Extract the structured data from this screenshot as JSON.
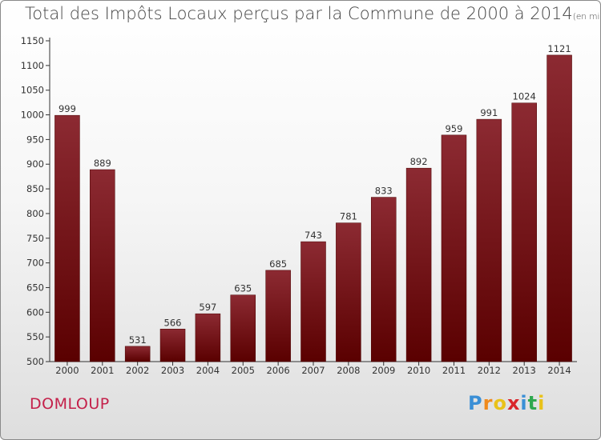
{
  "header": {
    "title": "Total des Impôts Locaux perçus par la Commune de 2000 à 2014",
    "unit": "(en milliers d'€)"
  },
  "footer": {
    "commune": "DOMLOUP",
    "logo_letters": [
      "P",
      "r",
      "o",
      "x",
      "i",
      "t",
      "i"
    ],
    "logo_colors": [
      "#3a8fd6",
      "#f08a1c",
      "#e9c21a",
      "#d9262b",
      "#3a8fd6",
      "#2fa84f",
      "#e9c21a"
    ]
  },
  "colors": {
    "bar_top": "#8c2a32",
    "bar_bottom": "#5a0000",
    "commune": "#c4204a"
  },
  "chart_data": {
    "type": "bar",
    "title": "Total des Impôts Locaux perçus par la Commune de 2000 à 2014",
    "xlabel": "",
    "ylabel": "",
    "categories": [
      "2000",
      "2001",
      "2002",
      "2003",
      "2004",
      "2005",
      "2006",
      "2007",
      "2008",
      "2009",
      "2010",
      "2011",
      "2012",
      "2013",
      "2014"
    ],
    "values": [
      999,
      889,
      531,
      566,
      597,
      635,
      685,
      743,
      781,
      833,
      892,
      959,
      991,
      1024,
      1121
    ],
    "ylim": [
      500,
      1150
    ],
    "yticks": [
      500,
      550,
      600,
      650,
      700,
      750,
      800,
      850,
      900,
      950,
      1000,
      1050,
      1100,
      1150
    ],
    "grid": false
  }
}
